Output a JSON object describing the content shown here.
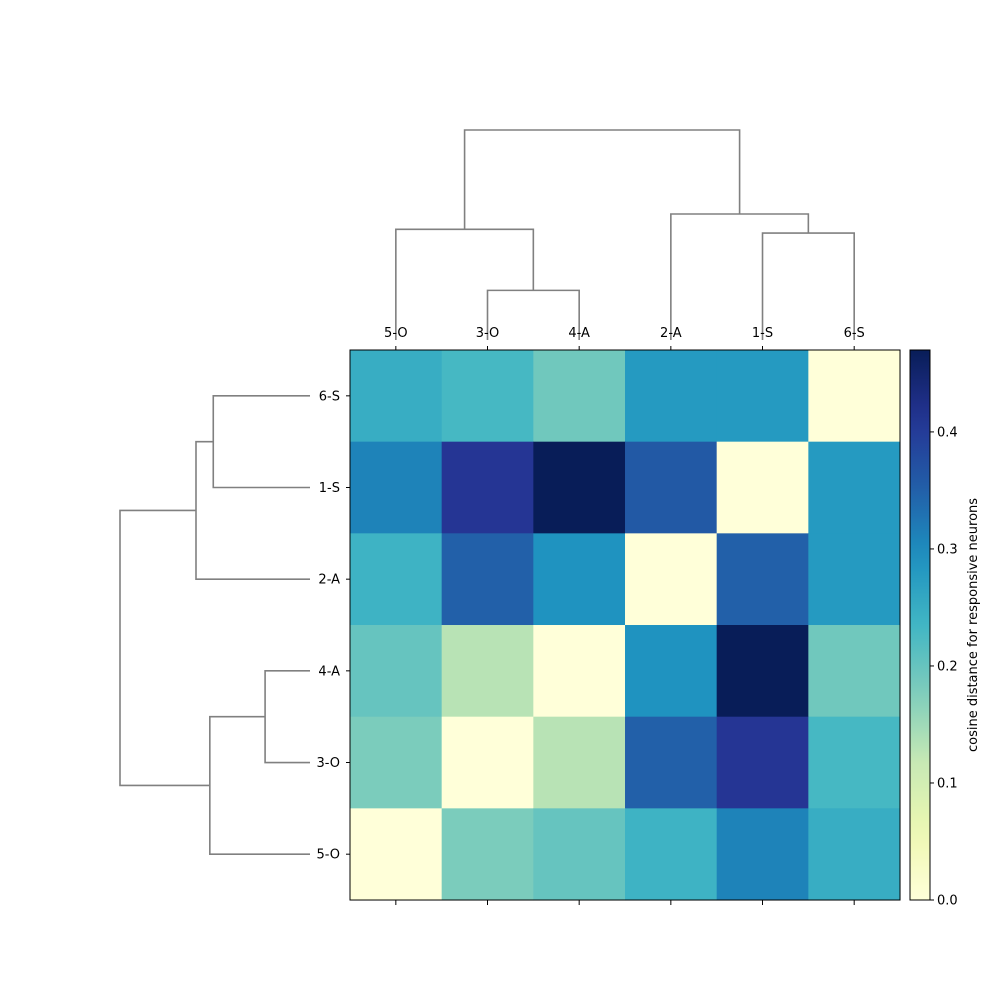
{
  "chart_data": {
    "type": "heatmap",
    "title": "",
    "col_labels": [
      "5-O",
      "3-O",
      "4-A",
      "2-A",
      "1-S",
      "6-S"
    ],
    "row_labels": [
      "6-S",
      "1-S",
      "2-A",
      "4-A",
      "3-O",
      "5-O"
    ],
    "values": [
      [
        0.25,
        0.23,
        0.19,
        0.28,
        0.28,
        0.0
      ],
      [
        0.31,
        0.41,
        0.47,
        0.36,
        0.0,
        0.28
      ],
      [
        0.24,
        0.35,
        0.29,
        0.0,
        0.35,
        0.28
      ],
      [
        0.2,
        0.13,
        0.0,
        0.29,
        0.47,
        0.19
      ],
      [
        0.18,
        0.0,
        0.13,
        0.35,
        0.41,
        0.23
      ],
      [
        0.0,
        0.18,
        0.2,
        0.24,
        0.31,
        0.25
      ]
    ],
    "colorbar": {
      "label": "cosine distance for responsive neurons",
      "range": [
        0,
        0.47
      ],
      "ticks": [
        0.0,
        0.1,
        0.2,
        0.3,
        0.4
      ],
      "tick_labels": [
        "0.0",
        "0.1",
        "0.2",
        "0.3",
        "0.4"
      ],
      "colormap": "YlGnBu"
    },
    "dendrogram": {
      "color": "#808080",
      "leaf_order": [
        "5-O",
        "3-O",
        "4-A",
        "2-A",
        "1-S",
        "6-S"
      ],
      "merges": [
        {
          "a": "3-O",
          "b": "4-A",
          "height": 0.13
        },
        {
          "a": "5-O",
          "b": "3-O+4-A",
          "height": 0.29
        },
        {
          "a": "1-S",
          "b": "6-S",
          "height": 0.28
        },
        {
          "a": "2-A",
          "b": "1-S+6-S",
          "height": 0.33
        },
        {
          "a": "5-O+3-O+4-A",
          "b": "2-A+1-S+6-S",
          "height": 0.55
        }
      ]
    }
  }
}
